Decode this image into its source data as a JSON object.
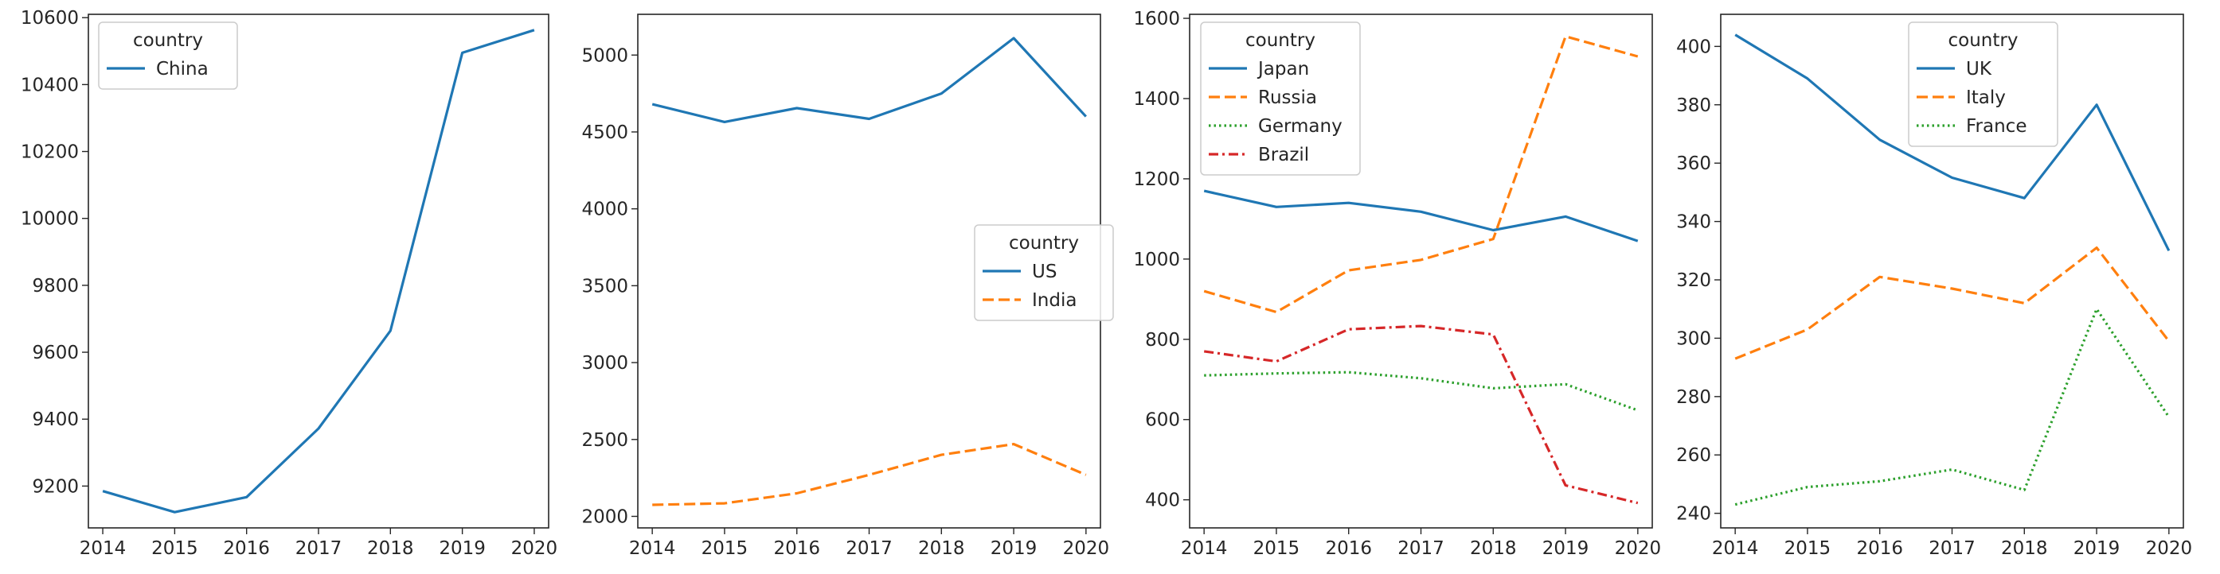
{
  "chart_data": [
    {
      "type": "line",
      "x": [
        2014,
        2015,
        2016,
        2017,
        2018,
        2019,
        2020
      ],
      "xlim": [
        2013.8,
        2020.2
      ],
      "ylim": [
        9075,
        10610
      ],
      "yticks": [
        9200,
        9400,
        9600,
        9800,
        10000,
        10200,
        10400,
        10600
      ],
      "grid": false,
      "legend": {
        "title": "country",
        "placement": "upper left"
      },
      "series": [
        {
          "name": "China",
          "style": "solid",
          "color": "#1f77b4",
          "values": [
            9185,
            9122,
            9167,
            9372,
            9664,
            10495,
            10563
          ]
        }
      ]
    },
    {
      "type": "line",
      "x": [
        2014,
        2015,
        2016,
        2017,
        2018,
        2019,
        2020
      ],
      "xlim": [
        2013.8,
        2020.2
      ],
      "ylim": [
        1925,
        5265
      ],
      "yticks": [
        2000,
        2500,
        3000,
        3500,
        4000,
        4500,
        5000
      ],
      "grid": false,
      "legend": {
        "title": "country",
        "placement": "center right"
      },
      "series": [
        {
          "name": "US",
          "style": "solid",
          "color": "#1f77b4",
          "values": [
            4680,
            4565,
            4655,
            4585,
            4750,
            5110,
            4600
          ]
        },
        {
          "name": "India",
          "style": "dashed",
          "color": "#ff7f0e",
          "values": [
            2075,
            2085,
            2150,
            2270,
            2400,
            2470,
            2270
          ]
        }
      ]
    },
    {
      "type": "line",
      "x": [
        2014,
        2015,
        2016,
        2017,
        2018,
        2019,
        2020
      ],
      "xlim": [
        2013.8,
        2020.2
      ],
      "ylim": [
        330,
        1610
      ],
      "yticks": [
        400,
        600,
        800,
        1000,
        1200,
        1400,
        1600
      ],
      "grid": false,
      "legend": {
        "title": "country",
        "placement": "upper left"
      },
      "series": [
        {
          "name": "Japan",
          "style": "solid",
          "color": "#1f77b4",
          "values": [
            1170,
            1130,
            1140,
            1118,
            1072,
            1106,
            1045
          ]
        },
        {
          "name": "Russia",
          "style": "dashed",
          "color": "#ff7f0e",
          "values": [
            920,
            868,
            972,
            998,
            1050,
            1555,
            1505
          ]
        },
        {
          "name": "Germany",
          "style": "dotted",
          "color": "#2ca02c",
          "values": [
            710,
            715,
            718,
            703,
            678,
            688,
            623
          ]
        },
        {
          "name": "Brazil",
          "style": "dashdot",
          "color": "#d62728",
          "values": [
            770,
            745,
            825,
            833,
            812,
            436,
            392
          ]
        }
      ]
    },
    {
      "type": "line",
      "x": [
        2014,
        2015,
        2016,
        2017,
        2018,
        2019,
        2020
      ],
      "xlim": [
        2013.8,
        2020.2
      ],
      "ylim": [
        235,
        411
      ],
      "yticks": [
        240,
        260,
        280,
        300,
        320,
        340,
        360,
        380,
        400
      ],
      "grid": false,
      "legend": {
        "title": "country",
        "placement": "upper center"
      },
      "series": [
        {
          "name": "UK",
          "style": "solid",
          "color": "#1f77b4",
          "values": [
            404,
            389,
            368,
            355,
            348,
            380,
            330
          ]
        },
        {
          "name": "Italy",
          "style": "dashed",
          "color": "#ff7f0e",
          "values": [
            293,
            303,
            321,
            317,
            312,
            331,
            299
          ]
        },
        {
          "name": "France",
          "style": "dotted",
          "color": "#2ca02c",
          "values": [
            243,
            249,
            251,
            255,
            248,
            310,
            273
          ]
        }
      ]
    }
  ]
}
